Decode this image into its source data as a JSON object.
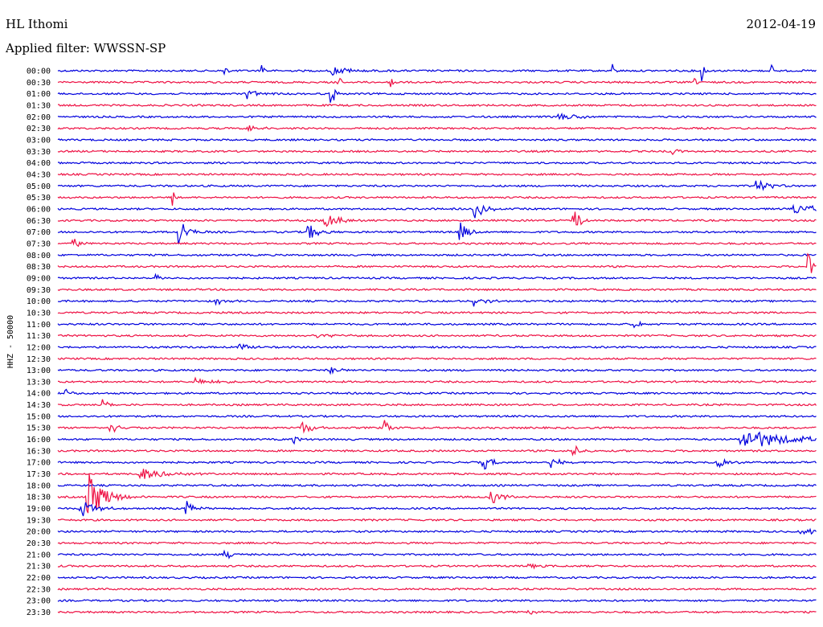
{
  "header": {
    "station": "HL Ithomi",
    "date": "2012-04-19",
    "filter_label": "Applied filter: WWSSN-SP"
  },
  "chart_data": {
    "type": "line",
    "channel_label": "HHZ - 50000",
    "row_labels": [
      "00:00",
      "00:30",
      "01:00",
      "01:30",
      "02:00",
      "02:30",
      "03:00",
      "03:30",
      "04:00",
      "04:30",
      "05:00",
      "05:30",
      "06:00",
      "06:30",
      "07:00",
      "07:30",
      "08:00",
      "08:30",
      "09:00",
      "09:30",
      "10:00",
      "10:30",
      "11:00",
      "11:30",
      "12:00",
      "12:30",
      "13:00",
      "13:30",
      "14:00",
      "14:30",
      "15:00",
      "15:30",
      "16:00",
      "16:30",
      "17:00",
      "17:30",
      "18:00",
      "18:30",
      "19:00",
      "19:30",
      "20:00",
      "20:30",
      "21:00",
      "21:30",
      "22:00",
      "22:30",
      "23:00",
      "23:30"
    ],
    "colors": [
      "#0000dd",
      "#ee1144"
    ],
    "events": [
      {
        "row": 0,
        "t": 0.36,
        "amp": 0.5,
        "dur": 0.02
      },
      {
        "row": 0,
        "t": 0.22,
        "amp": 1.0,
        "dur": 0.002
      },
      {
        "row": 0,
        "t": 0.27,
        "amp": 1.2,
        "dur": 0.002
      },
      {
        "row": 0,
        "t": 0.73,
        "amp": 1.0,
        "dur": 0.002
      },
      {
        "row": 0,
        "t": 0.85,
        "amp": 1.2,
        "dur": 0.002
      },
      {
        "row": 0,
        "t": 0.94,
        "amp": 0.8,
        "dur": 0.002
      },
      {
        "row": 1,
        "t": 0.37,
        "amp": 0.8,
        "dur": 0.003
      },
      {
        "row": 1,
        "t": 0.44,
        "amp": 0.6,
        "dur": 0.003
      },
      {
        "row": 1,
        "t": 0.84,
        "amp": 0.5,
        "dur": 0.003
      },
      {
        "row": 2,
        "t": 0.25,
        "amp": 0.6,
        "dur": 0.01
      },
      {
        "row": 2,
        "t": 0.36,
        "amp": 1.5,
        "dur": 0.004
      },
      {
        "row": 4,
        "t": 0.66,
        "amp": 0.4,
        "dur": 0.025
      },
      {
        "row": 5,
        "t": 0.25,
        "amp": 0.5,
        "dur": 0.01
      },
      {
        "row": 7,
        "t": 0.81,
        "amp": 0.3,
        "dur": 0.015
      },
      {
        "row": 10,
        "t": 0.92,
        "amp": 0.8,
        "dur": 0.015
      },
      {
        "row": 11,
        "t": 0.15,
        "amp": 1.2,
        "dur": 0.003
      },
      {
        "row": 12,
        "t": 0.55,
        "amp": 1.0,
        "dur": 0.01
      },
      {
        "row": 12,
        "t": 0.97,
        "amp": 0.6,
        "dur": 0.03
      },
      {
        "row": 13,
        "t": 0.35,
        "amp": 1.0,
        "dur": 0.015
      },
      {
        "row": 13,
        "t": 0.68,
        "amp": 1.8,
        "dur": 0.006
      },
      {
        "row": 14,
        "t": 0.16,
        "amp": 1.5,
        "dur": 0.01
      },
      {
        "row": 14,
        "t": 0.33,
        "amp": 1.0,
        "dur": 0.01
      },
      {
        "row": 14,
        "t": 0.53,
        "amp": 1.0,
        "dur": 0.01
      },
      {
        "row": 15,
        "t": 0.02,
        "amp": 0.8,
        "dur": 0.006
      },
      {
        "row": 17,
        "t": 0.99,
        "amp": 1.4,
        "dur": 0.005
      },
      {
        "row": 18,
        "t": 0.13,
        "amp": 0.3,
        "dur": 0.01
      },
      {
        "row": 20,
        "t": 0.55,
        "amp": 0.6,
        "dur": 0.01
      },
      {
        "row": 20,
        "t": 0.21,
        "amp": 0.4,
        "dur": 0.008
      },
      {
        "row": 22,
        "t": 0.76,
        "amp": 0.4,
        "dur": 0.01
      },
      {
        "row": 23,
        "t": 0.34,
        "amp": 0.3,
        "dur": 0.02
      },
      {
        "row": 24,
        "t": 0.24,
        "amp": 0.7,
        "dur": 0.008
      },
      {
        "row": 26,
        "t": 0.36,
        "amp": 0.4,
        "dur": 0.008
      },
      {
        "row": 27,
        "t": 0.18,
        "amp": 0.4,
        "dur": 0.02
      },
      {
        "row": 28,
        "t": 0.01,
        "amp": 0.4,
        "dur": 0.008
      },
      {
        "row": 29,
        "t": 0.06,
        "amp": 0.6,
        "dur": 0.008
      },
      {
        "row": 31,
        "t": 0.07,
        "amp": 0.8,
        "dur": 0.008
      },
      {
        "row": 31,
        "t": 0.32,
        "amp": 1.0,
        "dur": 0.01
      },
      {
        "row": 31,
        "t": 0.43,
        "amp": 0.8,
        "dur": 0.008
      },
      {
        "row": 32,
        "t": 0.9,
        "amp": 1.2,
        "dur": 0.05
      },
      {
        "row": 32,
        "t": 0.31,
        "amp": 0.4,
        "dur": 0.008
      },
      {
        "row": 33,
        "t": 0.68,
        "amp": 0.6,
        "dur": 0.008
      },
      {
        "row": 34,
        "t": 0.56,
        "amp": 0.9,
        "dur": 0.01
      },
      {
        "row": 34,
        "t": 0.65,
        "amp": 0.7,
        "dur": 0.008
      },
      {
        "row": 34,
        "t": 0.87,
        "amp": 0.7,
        "dur": 0.01
      },
      {
        "row": 35,
        "t": 0.11,
        "amp": 0.7,
        "dur": 0.025
      },
      {
        "row": 37,
        "t": 0.04,
        "amp": 2.5,
        "dur": 0.02
      },
      {
        "row": 37,
        "t": 0.57,
        "amp": 0.8,
        "dur": 0.015
      },
      {
        "row": 38,
        "t": 0.03,
        "amp": 1.0,
        "dur": 0.015
      },
      {
        "row": 38,
        "t": 0.17,
        "amp": 0.8,
        "dur": 0.008
      },
      {
        "row": 40,
        "t": 0.98,
        "amp": 0.5,
        "dur": 0.015
      },
      {
        "row": 42,
        "t": 0.22,
        "amp": 0.5,
        "dur": 0.01
      },
      {
        "row": 43,
        "t": 0.62,
        "amp": 0.3,
        "dur": 0.01
      },
      {
        "row": 47,
        "t": 0.62,
        "amp": 0.3,
        "dur": 0.01
      }
    ]
  }
}
